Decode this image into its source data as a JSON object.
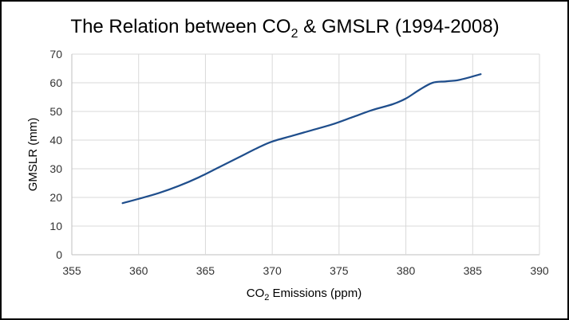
{
  "chart_data": {
    "type": "line",
    "title_main": "The Relation between CO",
    "title_sub": "2",
    "title_rest": " & GMSLR (1994-2008)",
    "xlabel_main": "CO",
    "xlabel_sub": "2",
    "xlabel_rest": " Emissions (ppm)",
    "ylabel": "GMSLR (mm)",
    "xlim": [
      355,
      390
    ],
    "ylim": [
      0,
      70
    ],
    "x_ticks": [
      "355",
      "360",
      "365",
      "370",
      "375",
      "380",
      "385",
      "390"
    ],
    "y_ticks": [
      "0",
      "10",
      "20",
      "30",
      "40",
      "50",
      "60",
      "70"
    ],
    "grid": "vertical and horizontal",
    "legend": "none",
    "series": [
      {
        "name": "GMSLR",
        "color": "#1f4e8c",
        "x": [
          358.8,
          360.0,
          361.5,
          363.0,
          364.5,
          366.0,
          367.5,
          369.0,
          370.0,
          371.5,
          373.0,
          374.5,
          376.0,
          377.5,
          379.0,
          380.0,
          381.0,
          382.0,
          383.0,
          384.0,
          385.6
        ],
        "y": [
          18,
          19.5,
          21.5,
          24,
          27,
          30.5,
          34,
          37.5,
          39.5,
          41.5,
          43.5,
          45.5,
          48,
          50.5,
          52.5,
          54.5,
          57.5,
          60,
          60.5,
          61,
          63
        ]
      }
    ]
  }
}
